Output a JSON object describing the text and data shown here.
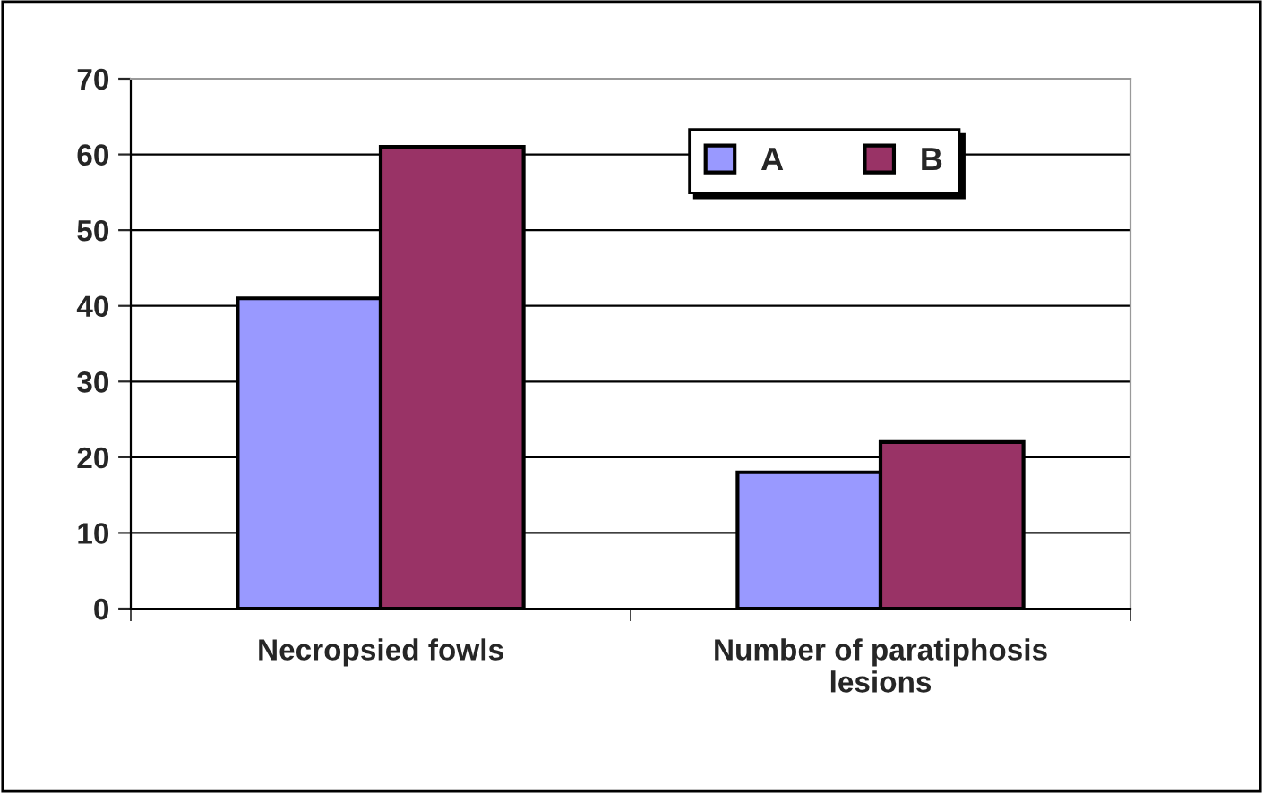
{
  "chart_data": {
    "type": "bar",
    "categories": [
      "Necropsied fowls",
      "Number of paratiphosis\nlesions"
    ],
    "series": [
      {
        "name": "A",
        "color": "#9999ff",
        "values": [
          41,
          18
        ]
      },
      {
        "name": "B",
        "color": "#993366",
        "values": [
          61,
          22
        ]
      }
    ],
    "ylim": [
      0,
      70
    ],
    "yticks": [
      0,
      10,
      20,
      30,
      40,
      50,
      60,
      70
    ],
    "grid": "y",
    "legend": "top right"
  }
}
